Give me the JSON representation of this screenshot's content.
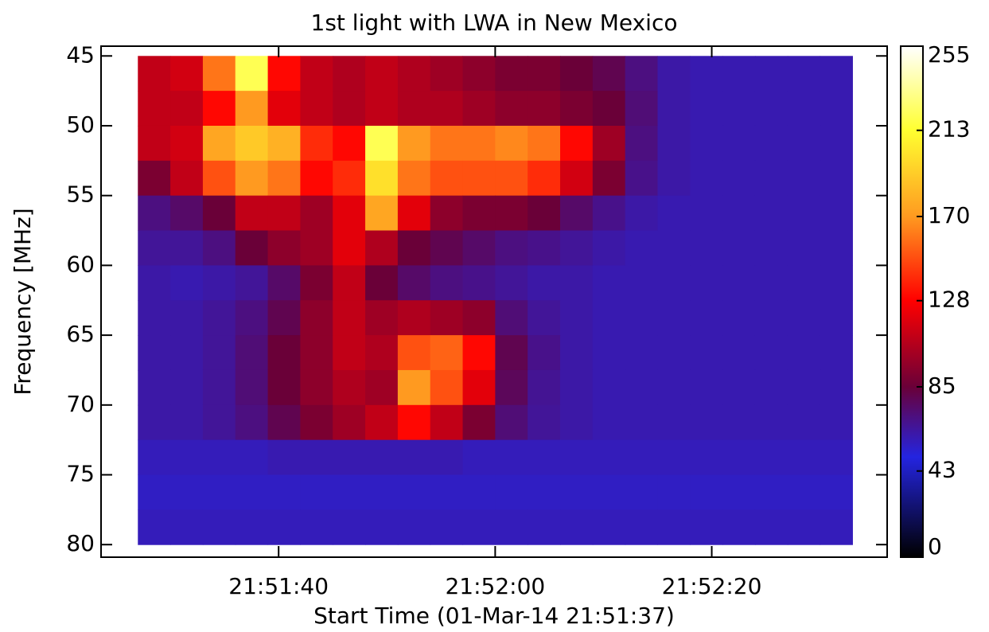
{
  "chart_data": {
    "type": "heatmap",
    "title": "1st light with LWA in New Mexico",
    "xlabel": "Start Time (01-Mar-14 21:51:37)",
    "ylabel": "Frequency [MHz]",
    "xlim": [
      78683.6,
      78756.2
    ],
    "xticks": [
      {
        "value": 78700,
        "label": "21:51:40"
      },
      {
        "value": 78720,
        "label": "21:52:00"
      },
      {
        "value": 78740,
        "label": "21:52:20"
      }
    ],
    "ylim": [
      44.3,
      80.9
    ],
    "y_inverted": true,
    "yticks": [
      45,
      50,
      55,
      60,
      65,
      70,
      75,
      80
    ],
    "zlim": [
      0,
      255
    ],
    "zticks": [
      0,
      43,
      85,
      128,
      170,
      213,
      255
    ],
    "colormap": [
      {
        "value": 0,
        "color": "#000000"
      },
      {
        "value": 50,
        "color": "#2424e0"
      },
      {
        "value": 85,
        "color": "#6a0038"
      },
      {
        "value": 128,
        "color": "#ff0000"
      },
      {
        "value": 170,
        "color": "#ff9a20"
      },
      {
        "value": 213,
        "color": "#ffff30"
      },
      {
        "value": 255,
        "color": "#ffffff"
      }
    ],
    "x_edges": [
      78687,
      78690,
      78693,
      78696,
      78699,
      78702,
      78705,
      78708,
      78711,
      78714,
      78717,
      78720,
      78723,
      78726,
      78729,
      78732,
      78735,
      78738,
      78741,
      78744,
      78747,
      78750,
      78753
    ],
    "y_edges": [
      45,
      47.5,
      50,
      52.5,
      55,
      57.5,
      60,
      62.5,
      65,
      67.5,
      70,
      72.5,
      75,
      77.5,
      80
    ],
    "z": [
      [
        110,
        115,
        160,
        220,
        130,
        110,
        105,
        110,
        105,
        100,
        95,
        90,
        90,
        85,
        80,
        70,
        62,
        60,
        60,
        60,
        60,
        60
      ],
      [
        110,
        110,
        130,
        170,
        120,
        110,
        105,
        110,
        105,
        105,
        100,
        95,
        95,
        90,
        85,
        72,
        62,
        60,
        60,
        60,
        60,
        60
      ],
      [
        110,
        115,
        175,
        190,
        180,
        140,
        130,
        220,
        170,
        160,
        160,
        165,
        160,
        130,
        100,
        70,
        62,
        60,
        60,
        60,
        60,
        60
      ],
      [
        90,
        110,
        150,
        170,
        160,
        130,
        140,
        200,
        160,
        150,
        150,
        150,
        140,
        115,
        90,
        68,
        62,
        60,
        60,
        60,
        60,
        60
      ],
      [
        70,
        75,
        85,
        110,
        110,
        100,
        120,
        175,
        120,
        95,
        90,
        90,
        85,
        75,
        68,
        62,
        60,
        60,
        60,
        60,
        60,
        60
      ],
      [
        65,
        65,
        70,
        85,
        95,
        100,
        120,
        105,
        85,
        80,
        75,
        70,
        68,
        65,
        62,
        60,
        60,
        60,
        60,
        60,
        60,
        60
      ],
      [
        62,
        60,
        62,
        65,
        75,
        90,
        110,
        85,
        75,
        70,
        68,
        65,
        62,
        62,
        60,
        60,
        60,
        60,
        60,
        60,
        60,
        60
      ],
      [
        62,
        62,
        65,
        70,
        80,
        95,
        110,
        100,
        105,
        100,
        95,
        72,
        65,
        62,
        60,
        60,
        60,
        60,
        60,
        60,
        60,
        60
      ],
      [
        62,
        62,
        65,
        72,
        85,
        95,
        110,
        105,
        150,
        155,
        130,
        80,
        68,
        62,
        60,
        60,
        60,
        60,
        60,
        60,
        60,
        60
      ],
      [
        62,
        62,
        65,
        72,
        85,
        95,
        105,
        100,
        170,
        150,
        120,
        78,
        66,
        62,
        60,
        60,
        60,
        60,
        60,
        60,
        60,
        60
      ],
      [
        62,
        62,
        65,
        70,
        80,
        90,
        100,
        110,
        130,
        110,
        90,
        72,
        65,
        62,
        60,
        60,
        60,
        60,
        60,
        60,
        60,
        60
      ],
      [
        58,
        58,
        58,
        58,
        60,
        60,
        60,
        60,
        60,
        60,
        58,
        58,
        58,
        58,
        58,
        58,
        58,
        58,
        58,
        58,
        58,
        58
      ],
      [
        56,
        56,
        56,
        56,
        56,
        56,
        56,
        56,
        56,
        56,
        56,
        56,
        56,
        56,
        56,
        56,
        56,
        56,
        56,
        56,
        56,
        56
      ],
      [
        58,
        58,
        58,
        58,
        58,
        58,
        58,
        58,
        58,
        58,
        58,
        58,
        58,
        58,
        58,
        58,
        58,
        58,
        58,
        58,
        58,
        58
      ]
    ]
  }
}
